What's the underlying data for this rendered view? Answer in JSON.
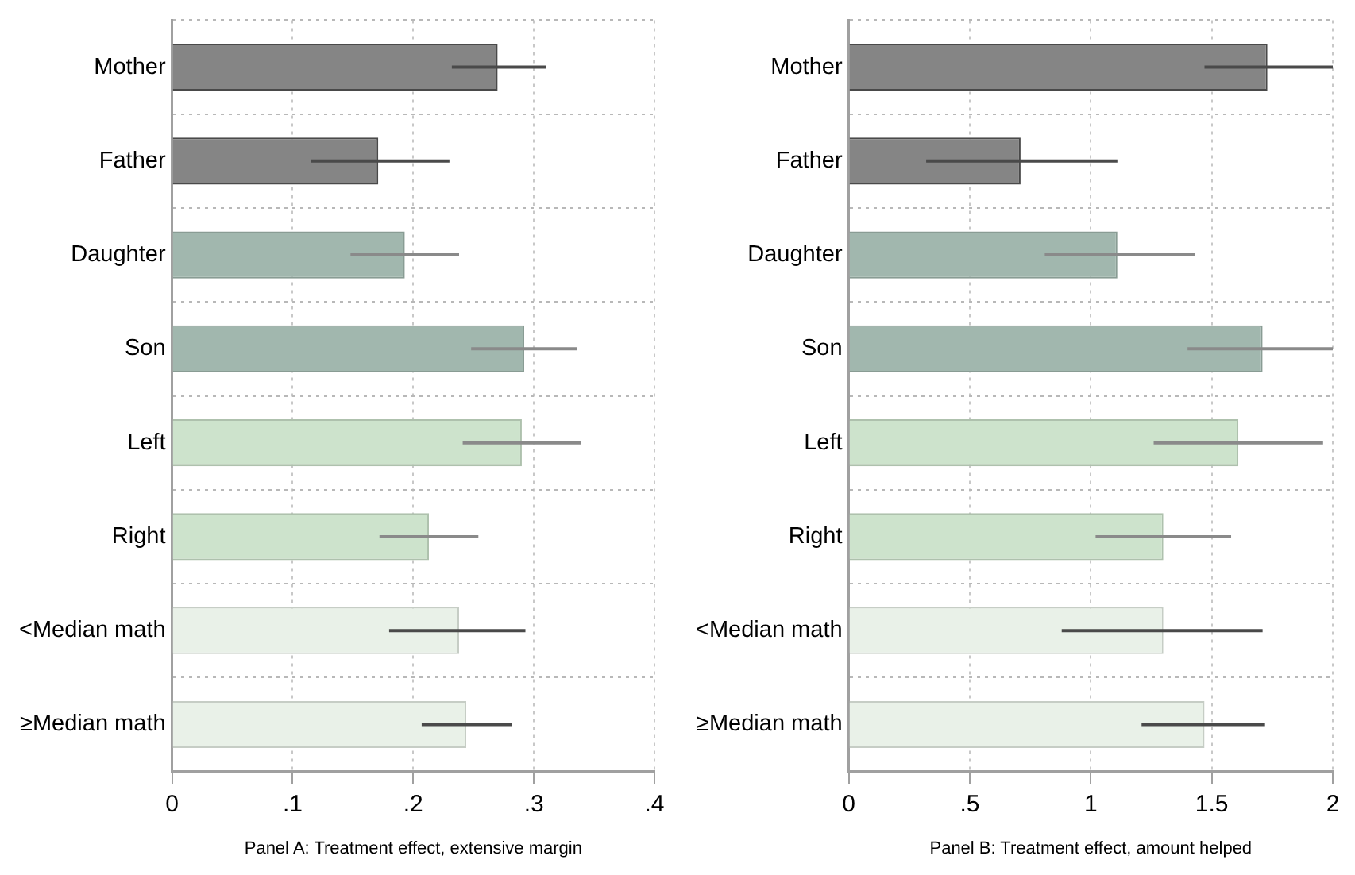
{
  "chart_data": [
    {
      "type": "bar",
      "orientation": "horizontal",
      "xlabel": "Panel A: Treatment effect, extensive margin",
      "categories": [
        "Mother",
        "Father",
        "Daughter",
        "Son",
        "Left",
        "Right",
        "<Median math",
        "≥Median math"
      ],
      "series": [
        {
          "values": [
            0.27,
            0.171,
            0.193,
            0.292,
            0.29,
            0.213,
            0.238,
            0.244
          ],
          "colors": [
            "#858585",
            "#858585",
            "#a1b7ae",
            "#a1b7ae",
            "#cde3cc",
            "#cde3cc",
            "#e9f1e8",
            "#e9f1e8"
          ],
          "errors": [
            [
              0.232,
              0.31
            ],
            [
              0.115,
              0.23
            ],
            [
              0.148,
              0.238
            ],
            [
              0.248,
              0.336
            ],
            [
              0.241,
              0.339
            ],
            [
              0.172,
              0.254
            ],
            [
              0.18,
              0.293
            ],
            [
              0.207,
              0.282
            ]
          ]
        }
      ],
      "xlim": [
        0,
        0.4
      ],
      "xticks": [
        0,
        {
          "value": 0.1,
          "label": ".1"
        },
        {
          "value": 0.2,
          "label": ".2"
        },
        {
          "value": 0.3,
          "label": ".3"
        },
        {
          "value": 0.4,
          "label": ".4"
        }
      ],
      "grid": true
    },
    {
      "type": "bar",
      "orientation": "horizontal",
      "xlabel": "Panel B: Treatment effect, amount helped",
      "categories": [
        "Mother",
        "Father",
        "Daughter",
        "Son",
        "Left",
        "Right",
        "<Median math",
        "≥Median math"
      ],
      "series": [
        {
          "values": [
            1.73,
            0.71,
            1.11,
            1.71,
            1.61,
            1.3,
            1.3,
            1.47
          ],
          "colors": [
            "#858585",
            "#858585",
            "#a1b7ae",
            "#a1b7ae",
            "#cde3cc",
            "#cde3cc",
            "#e9f1e8",
            "#e9f1e8"
          ],
          "errors": [
            [
              1.47,
              2.0
            ],
            [
              0.32,
              1.11
            ],
            [
              0.81,
              1.43
            ],
            [
              1.4,
              2.0
            ],
            [
              1.26,
              1.96
            ],
            [
              1.02,
              1.58
            ],
            [
              0.88,
              1.71
            ],
            [
              1.21,
              1.72
            ]
          ]
        }
      ],
      "xlim": [
        0,
        2
      ],
      "xticks": [
        0,
        {
          "value": 0.5,
          "label": ".5"
        },
        1,
        1.5,
        2
      ],
      "grid": true
    }
  ]
}
